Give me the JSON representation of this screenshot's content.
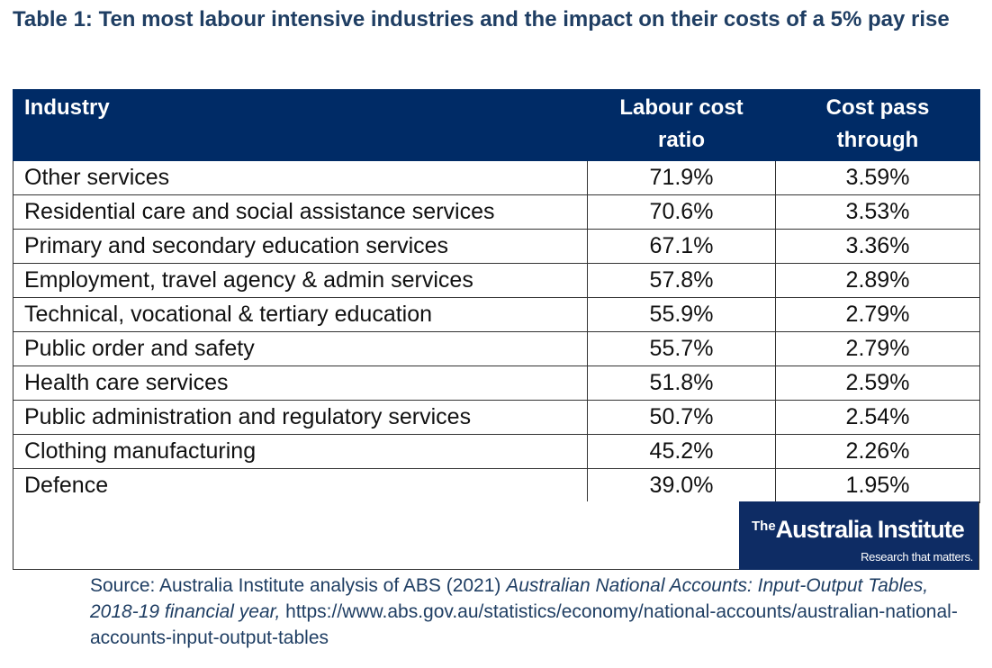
{
  "title": "Table 1: Ten most labour intensive industries and the impact on their costs of a 5% pay rise",
  "table": {
    "headers": {
      "industry": "Industry",
      "labour_cost_ratio": "Labour cost ratio",
      "cost_pass_through": "Cost pass through"
    },
    "rows": [
      {
        "industry": "Other services",
        "ratio": "71.9%",
        "pass": "3.59%"
      },
      {
        "industry": "Residential care and social assistance services",
        "ratio": "70.6%",
        "pass": "3.53%"
      },
      {
        "industry": "Primary and secondary education services",
        "ratio": "67.1%",
        "pass": "3.36%"
      },
      {
        "industry": "Employment, travel agency & admin services",
        "ratio": "57.8%",
        "pass": "2.89%"
      },
      {
        "industry": "Technical, vocational & tertiary education",
        "ratio": "55.9%",
        "pass": "2.79%"
      },
      {
        "industry": "Public order and safety",
        "ratio": "55.7%",
        "pass": "2.79%"
      },
      {
        "industry": "Health care services",
        "ratio": "51.8%",
        "pass": "2.59%"
      },
      {
        "industry": "Public administration and regulatory services",
        "ratio": "50.7%",
        "pass": "2.54%"
      },
      {
        "industry": "Clothing manufacturing",
        "ratio": "45.2%",
        "pass": "2.26%"
      },
      {
        "industry": "Defence",
        "ratio": "39.0%",
        "pass": "1.95%"
      }
    ]
  },
  "logo": {
    "the": "The",
    "name": "Australia Institute",
    "tagline": "Research that matters."
  },
  "source": {
    "prefix": "Source: Australia Institute analysis of ABS (2021) ",
    "italic": "Australian National Accounts: Input-Output Tables, 2018-19 financial year,",
    "url": " https://www.abs.gov.au/statistics/economy/national-accounts/australian-national-accounts-input-output-tables"
  },
  "colors": {
    "title": "#1f3e63",
    "header_bg": "#002b66",
    "logo_bg": "#0e2c64"
  }
}
